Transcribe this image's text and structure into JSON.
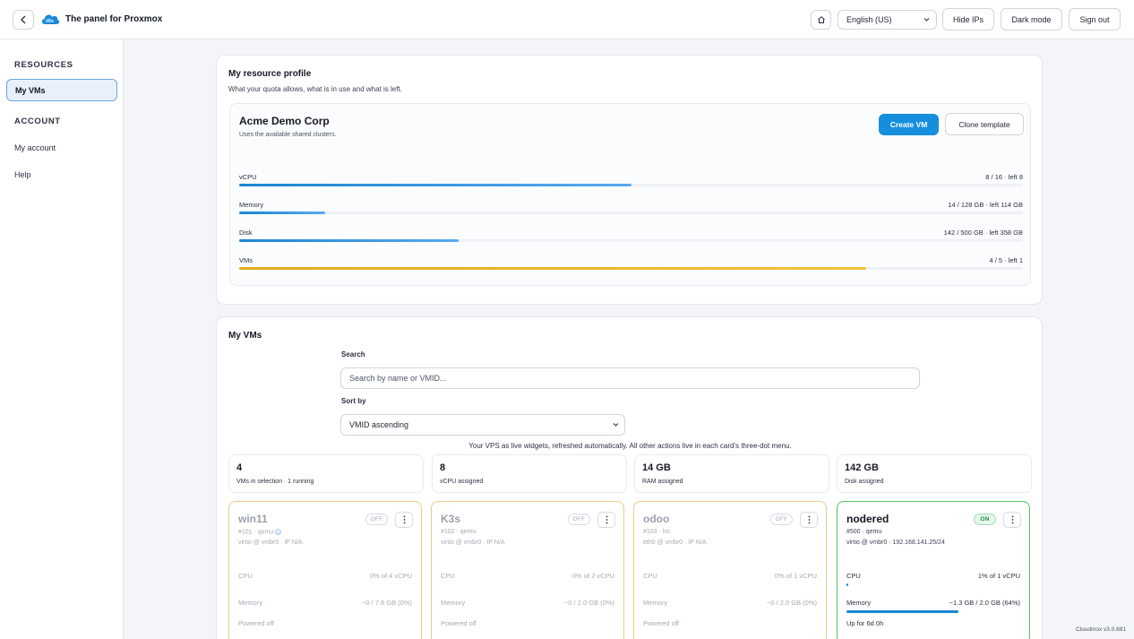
{
  "header": {
    "title": "The panel for Proxmox",
    "language": "English (US)",
    "hide_ips": "Hide IPs",
    "dark_mode": "Dark mode",
    "sign_out": "Sign out"
  },
  "sidebar": {
    "resources_heading": "RESOURCES",
    "account_heading": "ACCOUNT",
    "items": [
      {
        "label": "My VMs"
      },
      {
        "label": "My account"
      },
      {
        "label": "Help"
      }
    ]
  },
  "profile": {
    "title": "My resource profile",
    "subtitle": "What your quota allows, what is in use and what is left.",
    "org_name": "Acme Demo Corp",
    "org_sub": "Uses the available shared clusters.",
    "create_vm": "Create VM",
    "clone_template": "Clone template",
    "quotas": [
      {
        "label": "vCPU",
        "value": "8 / 16 · left 8",
        "fraction": 0.5,
        "color": "blue"
      },
      {
        "label": "Memory",
        "value": "14 / 128 GB · left 114 GB",
        "fraction": 0.11,
        "color": "blue"
      },
      {
        "label": "Disk",
        "value": "142 / 500 GB · left 358 GB",
        "fraction": 0.28,
        "color": "blue"
      },
      {
        "label": "VMs",
        "value": "4 / 5 · left 1",
        "fraction": 0.8,
        "color": "amber"
      }
    ]
  },
  "vms_panel": {
    "title": "My VMs",
    "search_label": "Search",
    "search_placeholder": "Search by name or VMID...",
    "sort_label": "Sort by",
    "sort_value": "VMID ascending",
    "hint": "Your VPS as live widgets, refreshed automatically. All other actions live in each card's three-dot menu.",
    "stats": [
      {
        "value": "4",
        "label": "VMs in selection · 1 running"
      },
      {
        "value": "8",
        "label": "vCPU assigned"
      },
      {
        "value": "14 GB",
        "label": "RAM assigned"
      },
      {
        "value": "142 GB",
        "label": "Disk assigned"
      }
    ],
    "vms": [
      {
        "name": "win11",
        "meta": "#101 · qemu",
        "info": true,
        "net": "virtio @ vmbr0 · IP N/A",
        "status": "OFF",
        "on": false,
        "cpu_label": "CPU",
        "cpu_value": "0% of 4 vCPU",
        "cpu_fraction": 0,
        "mem_label": "Memory",
        "mem_value": "~0 / 7.8 GB (0%)",
        "mem_fraction": 0,
        "footer": "Powered off"
      },
      {
        "name": "K3s",
        "meta": "#102 · qemu",
        "info": false,
        "net": "virtio @ vmbr0 · IP N/A",
        "status": "OFF",
        "on": false,
        "cpu_label": "CPU",
        "cpu_value": "0% of 2 vCPU",
        "cpu_fraction": 0,
        "mem_label": "Memory",
        "mem_value": "~0 / 2.0 GB (0%)",
        "mem_fraction": 0,
        "footer": "Powered off"
      },
      {
        "name": "odoo",
        "meta": "#103 · lxc",
        "info": false,
        "net": "eth0 @ vmbr0 · IP N/A",
        "status": "OFF",
        "on": false,
        "cpu_label": "CPU",
        "cpu_value": "0% of 1 vCPU",
        "cpu_fraction": 0,
        "mem_label": "Memory",
        "mem_value": "~0 / 2.0 GB (0%)",
        "mem_fraction": 0,
        "footer": "Powered off"
      },
      {
        "name": "nodered",
        "meta": "#500 · qemu",
        "info": false,
        "net": "virtio @ vmbr0 · 192.168.141.25/24",
        "status": "ON",
        "on": true,
        "cpu_label": "CPU",
        "cpu_value": "1% of 1 vCPU",
        "cpu_fraction": 0.01,
        "mem_label": "Memory",
        "mem_value": "~1.3 GB / 2.0 GB (64%)",
        "mem_fraction": 0.64,
        "footer": "Up for 6d 0h"
      }
    ]
  },
  "footer": {
    "version": "Cloudmox v3.0.681"
  },
  "colors": {
    "accent": "#168ede",
    "amber": "#e6a81e",
    "on_green": "#52c26b",
    "off_border": "#f0c88a"
  },
  "icons": [
    "back-icon",
    "cloud-logo-icon",
    "home-icon",
    "chevron-down-icon",
    "kebab-icon",
    "info-icon"
  ]
}
